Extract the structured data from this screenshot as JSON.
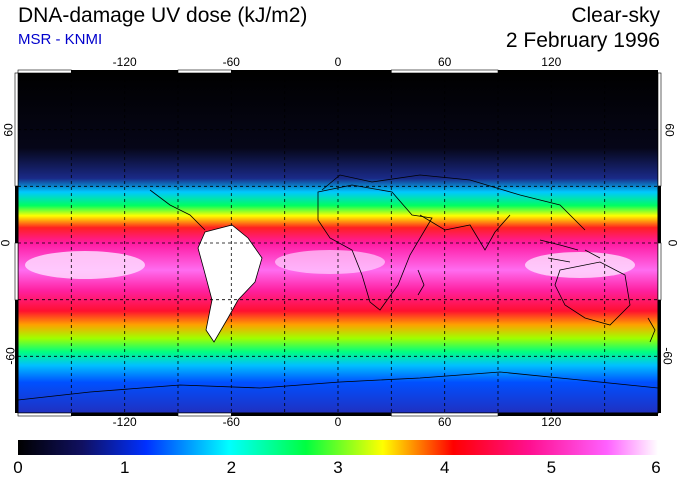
{
  "header": {
    "title": "DNA-damage UV dose (kJ/m2)",
    "source": "MSR - KNMI",
    "condition": "Clear-sky",
    "date": "2 February 1996"
  },
  "axes": {
    "lon_ticks": [
      "-120",
      "-60",
      "0",
      "60",
      "120"
    ],
    "lat_ticks": [
      "60",
      "0",
      "-60"
    ]
  },
  "colorbar": {
    "labels": [
      "0",
      "1",
      "2",
      "3",
      "4",
      "5",
      "6"
    ],
    "min": 0,
    "max": 6,
    "stops": [
      "#000000",
      "#101060",
      "#0030ff",
      "#00ffff",
      "#00ff40",
      "#ffff00",
      "#ff0000",
      "#ff1090",
      "#ff60ff",
      "#ffffff"
    ]
  },
  "map": {
    "lon_range": [
      -180,
      180
    ],
    "lat_range": [
      -90,
      90
    ],
    "gridlines": "dashed every 30°"
  }
}
